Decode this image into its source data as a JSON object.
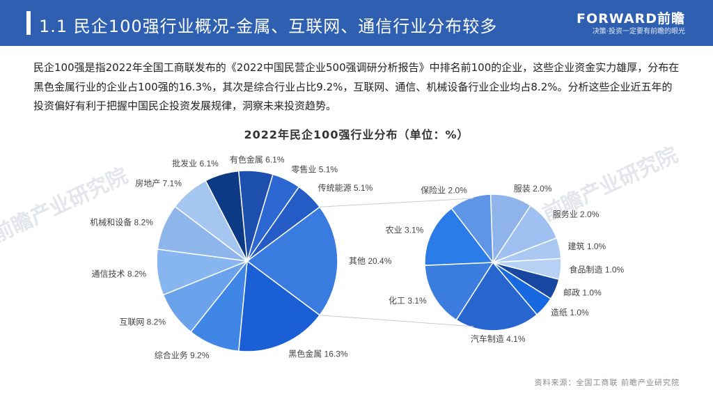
{
  "header": {
    "title": "1.1 民企100强行业概况-金属、互联网、通信行业分布较多",
    "brand_name": "FORWARD前瞻",
    "brand_slogan": "决策·投资一定要有前瞻的眼光"
  },
  "intro_text": "民企100强是指2022年全国工商联发布的《2022中国民营企业500强调研分析报告》中排名前100的企业，这些企业资金实力雄厚，分布在黑色金属行业的企业占100强的16.3%，其次是综合行业占比9.2%，互联网、通信、机械设备行业企业均占8.2%。分析这些企业近五年的投资偏好有利于把握中国民企投资发展规律，洞察未来投资趋势。",
  "watermark": "前瞻产业研究院",
  "source": "资料来源：全国工商联  前瞻产业研究院",
  "chart_data": {
    "type": "pie",
    "title": "2022年民企100强行业分布（单位：%）",
    "main_pie": [
      {
        "label": "其他",
        "value": 20.4,
        "color": "#3a7be0"
      },
      {
        "label": "黑色金属",
        "value": 16.3,
        "color": "#1a5fd6"
      },
      {
        "label": "综合业务",
        "value": 9.2,
        "color": "#3f86e6"
      },
      {
        "label": "互联网",
        "value": 8.2,
        "color": "#6aa3ec"
      },
      {
        "label": "通信技术",
        "value": 8.2,
        "color": "#86b5ef"
      },
      {
        "label": "机械和设备",
        "value": 8.2,
        "color": "#8fb6ea"
      },
      {
        "label": "房地产",
        "value": 7.1,
        "color": "#a6c6f2"
      },
      {
        "label": "批发业",
        "value": 6.1,
        "color": "#0d3a85"
      },
      {
        "label": "有色金属",
        "value": 6.1,
        "color": "#1d4fae"
      },
      {
        "label": "零售业",
        "value": 5.1,
        "color": "#2d67d1"
      },
      {
        "label": "传统能源",
        "value": 5.1,
        "color": "#245bc4"
      }
    ],
    "secondary_pie": [
      {
        "label": "服装",
        "value": 2.0,
        "color": "#8fb4ec"
      },
      {
        "label": "服务业",
        "value": 2.0,
        "color": "#9fc0f1"
      },
      {
        "label": "建筑",
        "value": 1.0,
        "color": "#a9c8f2"
      },
      {
        "label": "食品制造",
        "value": 1.0,
        "color": "#b7d1f5"
      },
      {
        "label": "邮政",
        "value": 1.0,
        "color": "#1747a0"
      },
      {
        "label": "造纸",
        "value": 1.0,
        "color": "#1769e0"
      },
      {
        "label": "汽车制造",
        "value": 4.1,
        "color": "#2765cf"
      },
      {
        "label": "化工",
        "value": 3.1,
        "color": "#3b7ddf"
      },
      {
        "label": "农业",
        "value": 3.1,
        "color": "#2b7be8"
      },
      {
        "label": "保险业",
        "value": 2.0,
        "color": "#5f95e6"
      }
    ]
  }
}
